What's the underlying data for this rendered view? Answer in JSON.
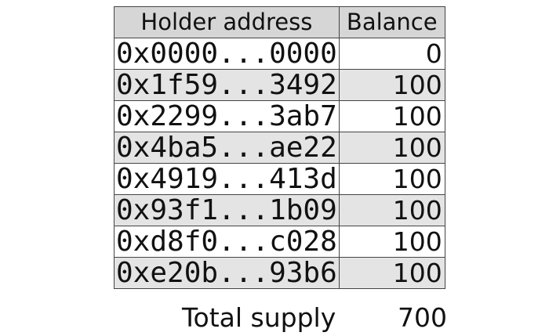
{
  "header": {
    "address": "Holder address",
    "balance": "Balance"
  },
  "rows": [
    {
      "address": "0x0000...0000",
      "balance": "0"
    },
    {
      "address": "0x1f59...3492",
      "balance": "100"
    },
    {
      "address": "0x2299...3ab7",
      "balance": "100"
    },
    {
      "address": "0x4ba5...ae22",
      "balance": "100"
    },
    {
      "address": "0x4919...413d",
      "balance": "100"
    },
    {
      "address": "0x93f1...1b09",
      "balance": "100"
    },
    {
      "address": "0xd8f0...c028",
      "balance": "100"
    },
    {
      "address": "0xe20b...93b6",
      "balance": "100"
    }
  ],
  "total": {
    "label": "Total supply",
    "value": "700"
  }
}
